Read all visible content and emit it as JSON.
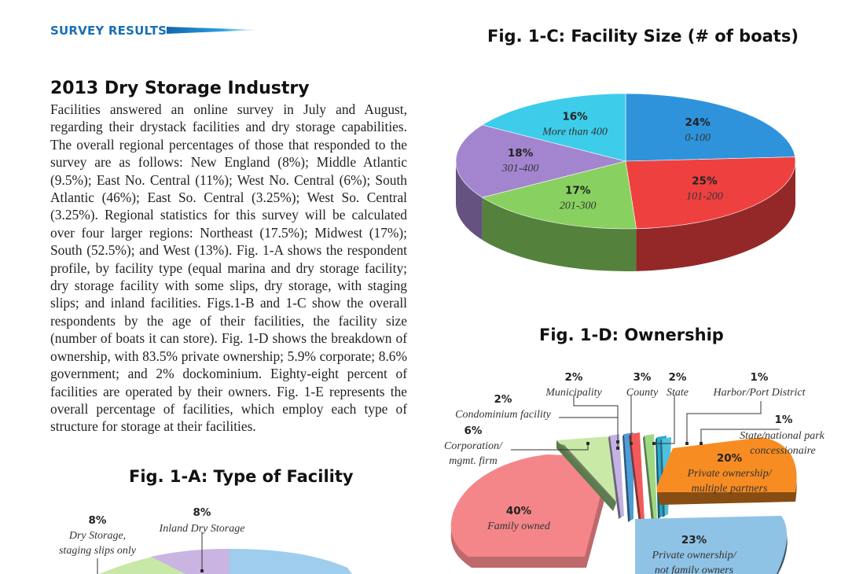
{
  "header": {
    "section_tag": "SURVEY RESULTS"
  },
  "article": {
    "title": "2013 Dry Storage Industry",
    "body": "Facilities answered an online survey in July and August, regarding their drystack facilities and dry storage capabilities. The overall regional percentages of those that responded to the survey are as follows: New England (8%); Middle Atlantic (9.5%); East No. Central (11%); West No. Central (6%); South Atlantic (46%); East So. Central (3.25%); West So. Central (3.25%). Regional statistics for this survey will be calculated over four larger regions: Northeast (17.5%); Midwest (17%); South (52.5%); and West (13%). Fig. 1-A shows the respondent profile, by facility type (equal marina and dry storage facility; dry storage facility with some slips, dry storage, with staging slips; and inland facilities. Figs.1-B and 1-C show the overall respondents by the age of their facilities, the facility size (number of boats it can store). Fig. 1-D shows the breakdown of ownership, with 83.5% private ownership; 5.9% corporate; 8.6% government; and 2% dockominium. Eighty-eight percent of facilities are operated by their owners. Fig. 1-E represents the overall percentage of facilities, which employ each type of structure for storage at their facilities."
  },
  "chart_data": [
    {
      "type": "pie",
      "title": "Fig. 1-C: Facility Size (# of boats)",
      "slices": [
        {
          "label": "0-100",
          "pct_label": "24%",
          "value": 24,
          "color": "#2f93dc"
        },
        {
          "label": "101-200",
          "pct_label": "25%",
          "value": 25,
          "color": "#ef4040"
        },
        {
          "label": "201-300",
          "pct_label": "17%",
          "value": 17,
          "color": "#88d160"
        },
        {
          "label": "301-400",
          "pct_label": "18%",
          "value": 18,
          "color": "#a385cf"
        },
        {
          "label": "More than 400",
          "pct_label": "16%",
          "value": 16,
          "color": "#3dcdea"
        }
      ]
    },
    {
      "type": "pie",
      "title": "Fig. 1-D: Ownership",
      "slices": [
        {
          "label": "Family owned",
          "pct_label": "40%",
          "value": 40,
          "color": "#f4868a"
        },
        {
          "label": "Private ownership/ not family owners",
          "pct_label": "23%",
          "value": 23,
          "color": "#8fc3e6"
        },
        {
          "label": "Private ownership/ multiple partners",
          "pct_label": "20%",
          "value": 20,
          "color": "#f78c22"
        },
        {
          "label": "State/national park concessionaire",
          "pct_label": "1%",
          "value": 1,
          "color": "#4ec1de"
        },
        {
          "label": "Harbor/Port District",
          "pct_label": "1%",
          "value": 1,
          "color": "#2aa9cf"
        },
        {
          "label": "State",
          "pct_label": "2%",
          "value": 2,
          "color": "#9fd883"
        },
        {
          "label": "County",
          "pct_label": "3%",
          "value": 3,
          "color": "#f25a5a"
        },
        {
          "label": "Municipality",
          "pct_label": "2%",
          "value": 2,
          "color": "#4c9ed9"
        },
        {
          "label": "Condominium facility",
          "pct_label": "2%",
          "value": 2,
          "color": "#c3b3e3"
        },
        {
          "label": "Corporation/ mgmt. firm",
          "pct_label": "6%",
          "value": 6,
          "color": "#c9e9a6"
        }
      ]
    },
    {
      "type": "pie",
      "title": "Fig. 1-A: Type of Facility",
      "slices": [
        {
          "label": "Dry Storage, staging slips only",
          "pct_label": "8%",
          "value": 8,
          "color": "#c7e8a6"
        },
        {
          "label": "Inland Dry Storage",
          "pct_label": "8%",
          "value": 8,
          "color": "#c9b4e2"
        }
      ]
    }
  ]
}
